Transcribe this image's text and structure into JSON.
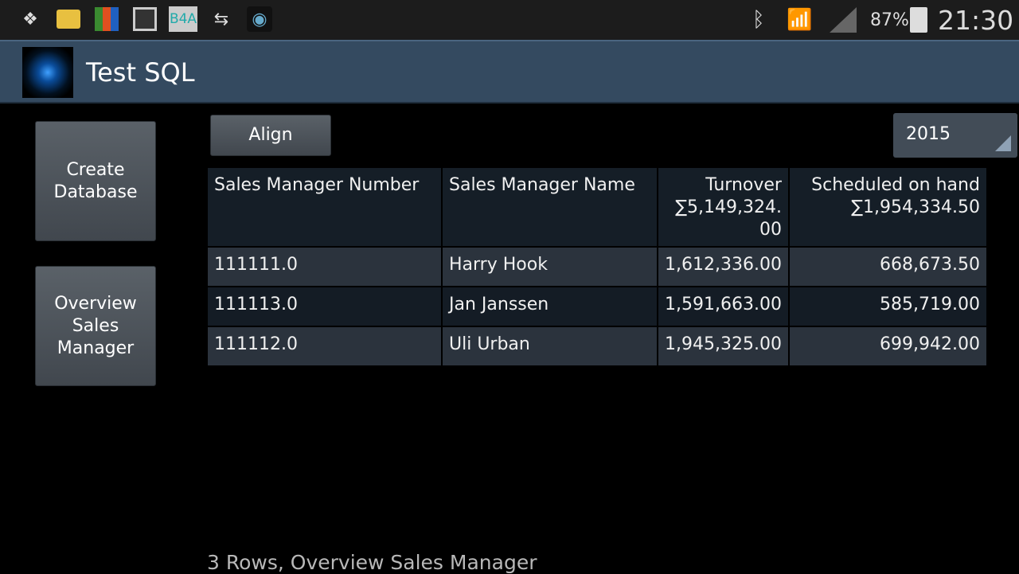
{
  "status_bar": {
    "icons": [
      "dropbox-icon",
      "file-manager-icon",
      "avg-icon",
      "gallery-icon",
      "b4a-icon",
      "sync-arrows-icon",
      "wifi-app-icon"
    ],
    "b4a_label": "B4A",
    "battery": "87%",
    "time": "21:30"
  },
  "app": {
    "title": "Test SQL"
  },
  "buttons": {
    "create_database": "Create Database",
    "overview": "Overview Sales Manager",
    "align": "Align"
  },
  "year_spinner": {
    "selected": "2015"
  },
  "table": {
    "headers": [
      "Sales Manager Number",
      "Sales Manager Name",
      "Turnover",
      "Scheduled on hand"
    ],
    "totals": {
      "turnover": "∑5,149,324.00",
      "scheduled": "∑1,954,334.50"
    },
    "rows": [
      [
        "111111.0",
        "Harry Hook",
        "1,612,336.00",
        "668,673.50"
      ],
      [
        "111113.0",
        "Jan Janssen",
        "1,591,663.00",
        "585,719.00"
      ],
      [
        "111112.0",
        "Uli Urban",
        "1,945,325.00",
        "699,942.00"
      ]
    ]
  },
  "footer": "3 Rows, Overview Sales Manager"
}
